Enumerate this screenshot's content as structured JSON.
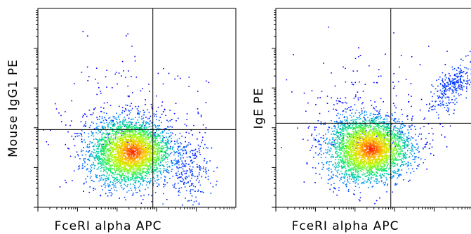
{
  "chart_data": [
    {
      "type": "scatter",
      "xlabel": "FceRI alpha APC",
      "ylabel": "Mouse IgG1 PE",
      "x_scale": "log",
      "y_scale": "log",
      "xlim": [
        1,
        100000
      ],
      "ylim": [
        1,
        100000
      ],
      "gate": {
        "x": 800,
        "y": 90
      },
      "populations": [
        {
          "name": "",
          "center": [
            250,
            25
          ],
          "spread": "dense"
        },
        {
          "name": "",
          "center": [
            6000,
            8
          ],
          "spread": "sparse"
        }
      ]
    },
    {
      "type": "scatter",
      "xlabel": "FceRI alpha APC",
      "ylabel": "IgE PE",
      "x_scale": "log",
      "y_scale": "log",
      "xlim": [
        1,
        100000
      ],
      "ylim": [
        1,
        100000
      ],
      "gate": {
        "x": 800,
        "y": 130
      },
      "populations": [
        {
          "name": "",
          "center": [
            250,
            30
          ],
          "spread": "dense"
        },
        {
          "name": "",
          "center": [
            30000,
            1200
          ],
          "spread": "elongated"
        }
      ]
    }
  ],
  "colors": {
    "density_low": "#0000ff",
    "density_mid": "#00ff66",
    "density_high": "#ff2200",
    "gate_line": "#000000",
    "frame": "#000000"
  }
}
